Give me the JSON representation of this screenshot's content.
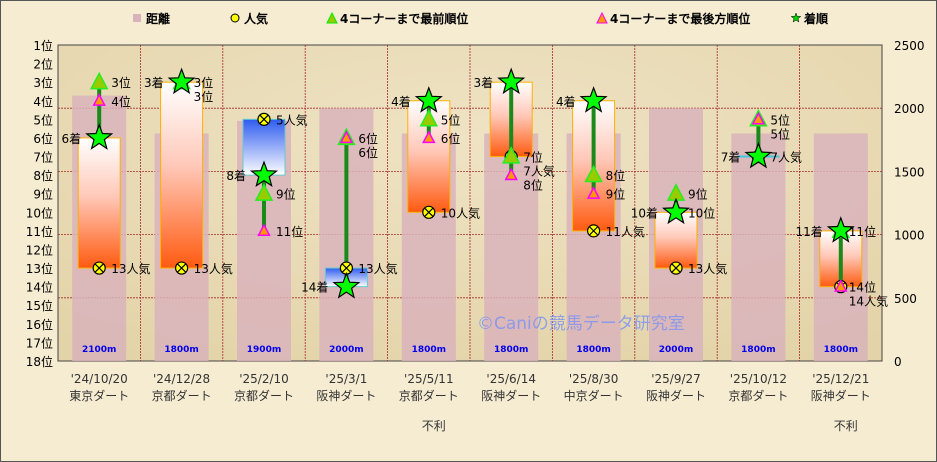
{
  "chart_data": {
    "type": "bar",
    "legend": {
      "placement": "top",
      "entries": [
        "距離",
        "人気",
        "4コーナーまで最前順位",
        "4コーナーまで最後方順位",
        "着順"
      ]
    },
    "watermark": "©Caniの競馬データ研究室",
    "y_left": {
      "range": [
        1,
        18
      ],
      "inverted": true,
      "suffix": "位",
      "ticks": [
        "1位",
        "2位",
        "3位",
        "4位",
        "5位",
        "6位",
        "7位",
        "8位",
        "9位",
        "10位",
        "11位",
        "12位",
        "13位",
        "14位",
        "15位",
        "16位",
        "17位",
        "18位"
      ]
    },
    "y_right": {
      "range": [
        0,
        2500
      ],
      "ticks": [
        0,
        500,
        1000,
        1500,
        2000,
        2500
      ]
    },
    "grid": true,
    "colors": {
      "distance": "#d9b3bb",
      "better_than_popularity": "#ff6a2a",
      "worse_than_popularity": "#3a66ee",
      "star": "#00ff00",
      "front": "#99cc00",
      "rear": "#ff9900",
      "line": "#1a8a1a",
      "grid": "#a52a2a"
    },
    "races": [
      {
        "date": "'24/10/20",
        "course": "東京ダート",
        "distance": 2100,
        "distance_label": "2100m",
        "finish": 6,
        "popularity": 13,
        "front": 3,
        "rear": 4,
        "note": ""
      },
      {
        "date": "'24/12/28",
        "course": "京都ダート",
        "distance": 1800,
        "distance_label": "1800m",
        "finish": 3,
        "popularity": 13,
        "front": 3,
        "rear": 3,
        "note": ""
      },
      {
        "date": "'25/2/10",
        "course": "京都ダート",
        "distance": 1900,
        "distance_label": "1900m",
        "finish": 8,
        "popularity": 5,
        "front": 9,
        "rear": 11,
        "note": ""
      },
      {
        "date": "'25/3/1",
        "course": "阪神ダート",
        "distance": 2000,
        "distance_label": "2000m",
        "finish": 14,
        "popularity": 13,
        "front": 6,
        "rear": 6,
        "note": ""
      },
      {
        "date": "'25/5/11",
        "course": "京都ダート",
        "distance": 1800,
        "distance_label": "1800m",
        "finish": 4,
        "popularity": 10,
        "front": 5,
        "rear": 6,
        "note": "不利"
      },
      {
        "date": "'25/6/14",
        "course": "阪神ダート",
        "distance": 1800,
        "distance_label": "1800m",
        "finish": 3,
        "popularity": 7,
        "front": 7,
        "rear": 8,
        "note": ""
      },
      {
        "date": "'25/8/30",
        "course": "中京ダート",
        "distance": 1800,
        "distance_label": "1800m",
        "finish": 4,
        "popularity": 11,
        "front": 8,
        "rear": 9,
        "note": ""
      },
      {
        "date": "'25/9/27",
        "course": "阪神ダート",
        "distance": 2000,
        "distance_label": "2000m",
        "finish": 10,
        "popularity": 13,
        "front": 9,
        "rear": 10,
        "note": ""
      },
      {
        "date": "'25/10/12",
        "course": "京都ダート",
        "distance": 1800,
        "distance_label": "1800m",
        "finish": 7,
        "popularity": 7,
        "front": 5,
        "rear": 5,
        "note": ""
      },
      {
        "date": "'25/12/21",
        "course": "阪神ダート",
        "distance": 1800,
        "distance_label": "1800m",
        "finish": 11,
        "popularity": 14,
        "front": 11,
        "rear": 14,
        "note": "不利"
      }
    ],
    "suffix": {
      "finish": "着",
      "popularity": "人気",
      "position": "位"
    }
  }
}
